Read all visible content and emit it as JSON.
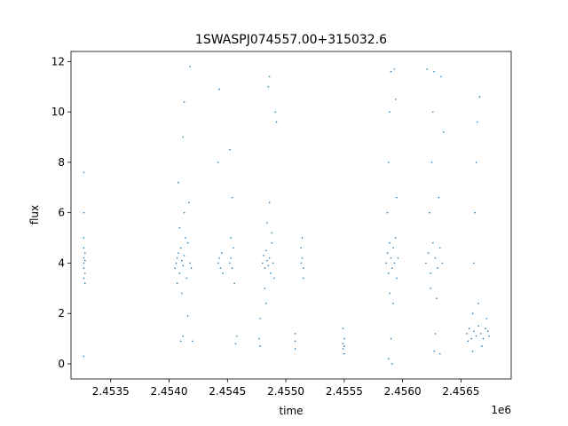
{
  "chart_data": {
    "type": "scatter",
    "title": "1SWASPJ074557.00+315032.6",
    "xlabel": "time",
    "ylabel": "flux",
    "x_offset_label": "1e6",
    "x_ticks": [
      2.4535,
      2.454,
      2.4545,
      2.455,
      2.4555,
      2.456,
      2.4565
    ],
    "x_tick_labels": [
      "2.4535",
      "2.4540",
      "2.4545",
      "2.4550",
      "2.4555",
      "2.4560",
      "2.4565"
    ],
    "y_ticks": [
      0,
      2,
      4,
      6,
      8,
      10,
      12
    ],
    "y_tick_labels": [
      "0",
      "2",
      "4",
      "6",
      "8",
      "10",
      "12"
    ],
    "xlim": [
      2.45316,
      2.45693
    ],
    "ylim": [
      -0.6,
      12.4
    ],
    "grid": false,
    "marker_color": "#1f77b4",
    "points": [
      [
        2.45327,
        3.8
      ],
      [
        2.45327,
        4.0
      ],
      [
        2.45327,
        4.2
      ],
      [
        2.45328,
        4.4
      ],
      [
        2.45328,
        3.6
      ],
      [
        2.45327,
        4.6
      ],
      [
        2.45328,
        3.2
      ],
      [
        2.45327,
        5.0
      ],
      [
        2.45327,
        6.0
      ],
      [
        2.45327,
        7.6
      ],
      [
        2.45327,
        0.3
      ],
      [
        2.45328,
        4.1
      ],
      [
        2.45327,
        3.4
      ],
      [
        2.45405,
        3.8
      ],
      [
        2.45406,
        4.0
      ],
      [
        2.45407,
        4.2
      ],
      [
        2.45408,
        4.4
      ],
      [
        2.45409,
        3.6
      ],
      [
        2.4541,
        4.6
      ],
      [
        2.45411,
        4.1
      ],
      [
        2.45412,
        3.9
      ],
      [
        2.45413,
        4.3
      ],
      [
        2.45414,
        5.0
      ],
      [
        2.45415,
        3.4
      ],
      [
        2.45416,
        4.8
      ],
      [
        2.45407,
        3.2
      ],
      [
        2.45409,
        5.4
      ],
      [
        2.45411,
        2.8
      ],
      [
        2.45413,
        6.0
      ],
      [
        2.45412,
        1.1
      ],
      [
        2.4541,
        0.9
      ],
      [
        2.45412,
        9.0
      ],
      [
        2.45413,
        10.4
      ],
      [
        2.45418,
        11.8
      ],
      [
        2.45417,
        6.4
      ],
      [
        2.45418,
        4.0
      ],
      [
        2.45419,
        3.8
      ],
      [
        2.45416,
        1.9
      ],
      [
        2.4542,
        0.9
      ],
      [
        2.45408,
        7.2
      ],
      [
        2.45442,
        4.0
      ],
      [
        2.45443,
        4.2
      ],
      [
        2.45444,
        3.8
      ],
      [
        2.45445,
        4.4
      ],
      [
        2.45442,
        8.0
      ],
      [
        2.45443,
        10.9
      ],
      [
        2.45446,
        3.6
      ],
      [
        2.45452,
        4.0
      ],
      [
        2.45453,
        4.2
      ],
      [
        2.45454,
        3.8
      ],
      [
        2.45455,
        4.6
      ],
      [
        2.45453,
        5.0
      ],
      [
        2.45454,
        6.6
      ],
      [
        2.45452,
        8.5
      ],
      [
        2.45457,
        0.8
      ],
      [
        2.45458,
        1.1
      ],
      [
        2.45456,
        3.2
      ],
      [
        2.45477,
        1.0
      ],
      [
        2.45478,
        0.7
      ],
      [
        2.45478,
        1.8
      ],
      [
        2.4548,
        4.0
      ],
      [
        2.45481,
        4.3
      ],
      [
        2.45482,
        3.8
      ],
      [
        2.45483,
        4.5
      ],
      [
        2.45484,
        4.1
      ],
      [
        2.45485,
        3.9
      ],
      [
        2.45486,
        4.2
      ],
      [
        2.45487,
        3.6
      ],
      [
        2.45488,
        4.8
      ],
      [
        2.45489,
        4.0
      ],
      [
        2.4549,
        3.4
      ],
      [
        2.45484,
        5.6
      ],
      [
        2.45486,
        6.4
      ],
      [
        2.45485,
        11.0
      ],
      [
        2.45486,
        11.4
      ],
      [
        2.45492,
        9.6
      ],
      [
        2.45491,
        10.0
      ],
      [
        2.45483,
        2.4
      ],
      [
        2.45482,
        3.0
      ],
      [
        2.45488,
        5.2
      ],
      [
        2.45513,
        4.0
      ],
      [
        2.45514,
        4.2
      ],
      [
        2.45515,
        3.8
      ],
      [
        2.45513,
        4.6
      ],
      [
        2.45514,
        5.0
      ],
      [
        2.45515,
        3.4
      ],
      [
        2.45508,
        0.6
      ],
      [
        2.45508,
        0.9
      ],
      [
        2.45508,
        1.2
      ],
      [
        2.45549,
        0.6
      ],
      [
        2.45549,
        0.8
      ],
      [
        2.4555,
        1.0
      ],
      [
        2.4555,
        0.7
      ],
      [
        2.45549,
        1.4
      ],
      [
        2.4555,
        0.4
      ],
      [
        2.45586,
        4.0
      ],
      [
        2.45587,
        4.4
      ],
      [
        2.45588,
        3.6
      ],
      [
        2.45589,
        4.8
      ],
      [
        2.4559,
        4.2
      ],
      [
        2.45591,
        3.8
      ],
      [
        2.45592,
        4.6
      ],
      [
        2.45593,
        4.0
      ],
      [
        2.45594,
        5.0
      ],
      [
        2.45595,
        3.4
      ],
      [
        2.45596,
        4.2
      ],
      [
        2.45587,
        6.0
      ],
      [
        2.45588,
        8.0
      ],
      [
        2.45589,
        10.0
      ],
      [
        2.4559,
        11.6
      ],
      [
        2.45593,
        11.7
      ],
      [
        2.45594,
        10.5
      ],
      [
        2.45592,
        2.4
      ],
      [
        2.4559,
        1.0
      ],
      [
        2.45591,
        0.0
      ],
      [
        2.45588,
        0.2
      ],
      [
        2.45595,
        6.6
      ],
      [
        2.45589,
        2.8
      ],
      [
        2.4562,
        4.0
      ],
      [
        2.45622,
        4.4
      ],
      [
        2.45624,
        3.6
      ],
      [
        2.45626,
        4.8
      ],
      [
        2.45628,
        4.2
      ],
      [
        2.4563,
        3.8
      ],
      [
        2.45632,
        4.6
      ],
      [
        2.45634,
        4.0
      ],
      [
        2.45623,
        6.0
      ],
      [
        2.45625,
        8.0
      ],
      [
        2.45626,
        10.0
      ],
      [
        2.45627,
        11.6
      ],
      [
        2.45621,
        11.7
      ],
      [
        2.45633,
        11.4
      ],
      [
        2.45635,
        9.2
      ],
      [
        2.45629,
        2.6
      ],
      [
        2.45628,
        1.2
      ],
      [
        2.45627,
        0.5
      ],
      [
        2.45632,
        0.4
      ],
      [
        2.45631,
        6.6
      ],
      [
        2.45624,
        3.0
      ],
      [
        2.45655,
        1.2
      ],
      [
        2.45657,
        1.4
      ],
      [
        2.45659,
        1.0
      ],
      [
        2.45661,
        1.3
      ],
      [
        2.45663,
        1.1
      ],
      [
        2.45665,
        1.5
      ],
      [
        2.45667,
        1.2
      ],
      [
        2.45669,
        1.0
      ],
      [
        2.45671,
        1.4
      ],
      [
        2.45673,
        1.3
      ],
      [
        2.4566,
        2.0
      ],
      [
        2.45661,
        4.0
      ],
      [
        2.45662,
        6.0
      ],
      [
        2.45663,
        8.0
      ],
      [
        2.45664,
        9.6
      ],
      [
        2.45666,
        10.6
      ],
      [
        2.4566,
        0.5
      ],
      [
        2.45668,
        0.7
      ],
      [
        2.45665,
        2.4
      ],
      [
        2.45656,
        0.9
      ],
      [
        2.45674,
        1.1
      ],
      [
        2.45672,
        1.8
      ]
    ]
  }
}
